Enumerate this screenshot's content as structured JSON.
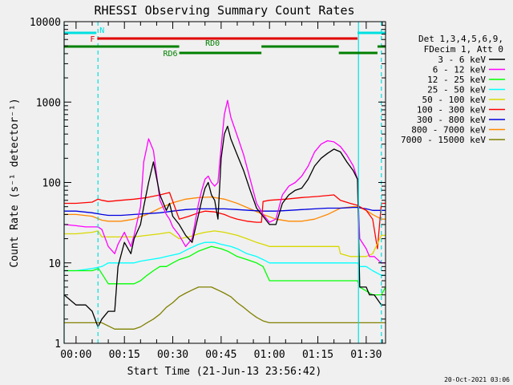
{
  "chart_data": {
    "type": "line",
    "title": "RHESSI Observing Summary Count Rates",
    "xlabel": "Start Time (21-Jun-13 23:56:42)",
    "ylabel": "Count Rate (s⁻¹ detector⁻¹)",
    "yscale": "log",
    "ylim": [
      1,
      10000
    ],
    "xlim_min": [
      -3.7,
      96
    ],
    "x_unit": "minutes after 00:00",
    "x_ticks": [
      "00:00",
      "00:15",
      "00:30",
      "00:45",
      "01:00",
      "01:15",
      "01:30"
    ],
    "y_ticks": [
      "1",
      "10",
      "100",
      "1000",
      "10000"
    ],
    "legend_header": [
      "Det 1,3,4,5,6,9,",
      "FDecim 1, Att 0"
    ],
    "legend_position": "right",
    "footer_date": "20-Oct-2021 03:06",
    "flags": [
      {
        "label": "N",
        "color": "#00e0e0",
        "segments": [
          [
            -3.7,
            6.3
          ],
          [
            87.3,
            96
          ]
        ]
      },
      {
        "label": "F",
        "color": "#e00000",
        "segments": [
          [
            6.6,
            87.3
          ]
        ]
      },
      {
        "label": "RD0",
        "color": "#008000",
        "segments": [
          [
            -3.7,
            32
          ],
          [
            57.5,
            81.5
          ],
          [
            93.5,
            96
          ]
        ]
      },
      {
        "label": "RD6",
        "color": "#008000",
        "segments": [
          [
            32,
            57.5
          ],
          [
            81.5,
            93.5
          ]
        ]
      }
    ],
    "vlines": [
      {
        "x": -3.7,
        "color": "#00e0e0",
        "style": "solid"
      },
      {
        "x": 6.8,
        "color": "#00e0e0",
        "style": "dashed"
      },
      {
        "x": 87.6,
        "color": "#00e0e0",
        "style": "solid"
      },
      {
        "x": 94.7,
        "color": "#00e0e0",
        "style": "dashed"
      }
    ],
    "series": [
      {
        "name": "3 - 6 keV",
        "color": "#000000",
        "x": [
          -3.7,
          0,
          3,
          5,
          6.8,
          8,
          10,
          12,
          13,
          15,
          17,
          18,
          20,
          21,
          22.5,
          24,
          26,
          28,
          29,
          30,
          32,
          34,
          36,
          38,
          39,
          40,
          41,
          42,
          43,
          44,
          45,
          46,
          47,
          48,
          50,
          52,
          54,
          56,
          58,
          60,
          62,
          64,
          66,
          68,
          70,
          72,
          74,
          76,
          78,
          80,
          82,
          84,
          86,
          87.3,
          88,
          90,
          91,
          92.5,
          94.7,
          96
        ],
        "y": [
          4,
          3,
          3,
          2.5,
          1.6,
          2,
          2.5,
          2.5,
          9,
          18,
          13,
          20,
          30,
          50,
          100,
          180,
          70,
          45,
          55,
          38,
          30,
          22,
          18,
          40,
          60,
          85,
          100,
          70,
          60,
          35,
          200,
          400,
          500,
          350,
          220,
          140,
          80,
          48,
          38,
          30,
          30,
          55,
          70,
          80,
          85,
          110,
          160,
          200,
          230,
          260,
          240,
          180,
          140,
          110,
          5,
          5,
          4,
          4,
          3,
          3
        ]
      },
      {
        "name": "6 - 12 keV",
        "color": "#ff00ff",
        "x": [
          -3.7,
          0,
          3,
          5,
          6.8,
          8,
          10,
          12,
          13,
          15,
          17,
          18,
          20,
          21,
          22.5,
          24,
          26,
          28,
          29,
          30,
          32,
          34,
          36,
          38,
          39,
          40,
          41,
          42,
          43,
          44,
          45,
          46,
          47,
          48,
          50,
          52,
          54,
          56,
          58,
          60,
          62,
          64,
          66,
          68,
          70,
          72,
          74,
          76,
          78,
          80,
          82,
          84,
          86,
          87.3,
          88,
          90,
          91,
          92.5,
          94.7,
          96
        ],
        "y": [
          30,
          29,
          28,
          28,
          28,
          26,
          16,
          13,
          17,
          24,
          16,
          22,
          50,
          180,
          350,
          250,
          60,
          40,
          35,
          28,
          22,
          16,
          20,
          55,
          80,
          110,
          120,
          100,
          90,
          100,
          280,
          700,
          1050,
          650,
          380,
          220,
          110,
          55,
          40,
          32,
          35,
          70,
          90,
          100,
          120,
          160,
          240,
          300,
          330,
          320,
          280,
          220,
          160,
          110,
          20,
          15,
          12,
          12,
          10,
          10
        ]
      },
      {
        "name": "12 - 25 keV",
        "color": "#00ff00",
        "x": [
          -3.7,
          0,
          5,
          7,
          10,
          13,
          15,
          18,
          20,
          22,
          24,
          26,
          28,
          30,
          32,
          35,
          38,
          40,
          42,
          45,
          47,
          50,
          53,
          56,
          58,
          60,
          65,
          70,
          75,
          80,
          82,
          85,
          87.3,
          88,
          92,
          94.7,
          96
        ],
        "y": [
          8,
          8,
          8,
          8.5,
          5.5,
          5.5,
          5.5,
          5.5,
          6,
          7,
          8,
          9,
          9,
          10,
          11,
          12,
          14,
          15,
          16,
          15,
          14,
          12,
          11,
          10,
          9,
          6,
          6,
          6,
          6,
          6,
          6,
          6,
          6,
          5,
          4,
          4,
          5
        ]
      },
      {
        "name": "25 - 50 keV",
        "color": "#00ffff",
        "x": [
          -3.7,
          0,
          5,
          8,
          10,
          13,
          16,
          18,
          20,
          23,
          26,
          28,
          30,
          32,
          35,
          38,
          40,
          43,
          45,
          48,
          50,
          53,
          56,
          58,
          60,
          65,
          70,
          75,
          80,
          82,
          85,
          87.3,
          88,
          90,
          92,
          94.7,
          96
        ],
        "y": [
          8,
          8,
          8.5,
          9,
          10,
          10,
          10,
          10,
          10.5,
          11,
          11.5,
          12,
          12.5,
          13,
          15,
          17,
          18,
          18,
          17,
          16,
          15,
          13,
          12,
          11,
          10,
          10,
          10,
          10,
          10,
          10,
          10,
          10,
          9,
          9,
          8,
          7,
          7
        ]
      },
      {
        "name": "50 - 100 keV",
        "color": "#d8d800",
        "x": [
          -3.7,
          0,
          5,
          6.8,
          8,
          10,
          14,
          18,
          22,
          26,
          29,
          32,
          35,
          38,
          40,
          43,
          46,
          48,
          50,
          53,
          56,
          58,
          60,
          65,
          70,
          75,
          80,
          81.5,
          82,
          85,
          87.3,
          88,
          90,
          92,
          94.7,
          96
        ],
        "y": [
          23,
          23,
          24,
          25,
          21,
          21,
          21,
          21,
          22,
          23,
          24,
          20,
          21,
          23,
          24,
          25,
          24,
          23,
          22,
          20,
          18,
          17,
          16,
          16,
          16,
          16,
          16,
          16,
          13,
          12,
          12,
          12,
          12,
          13,
          22,
          22
        ]
      },
      {
        "name": "100 - 300 keV",
        "color": "#ff0000",
        "x": [
          -3.7,
          0,
          5,
          6.8,
          8,
          10,
          14,
          18,
          22,
          26,
          29,
          32,
          35,
          38,
          40,
          43,
          46,
          48,
          50,
          53,
          56,
          57.5,
          58,
          60,
          65,
          70,
          75,
          80,
          82,
          85,
          87.3,
          88,
          90,
          92,
          93.5,
          94.7,
          96
        ],
        "y": [
          55,
          55,
          57,
          62,
          60,
          58,
          60,
          62,
          65,
          70,
          75,
          35,
          38,
          42,
          44,
          43,
          40,
          37,
          35,
          33,
          32,
          32,
          58,
          60,
          62,
          65,
          67,
          70,
          60,
          55,
          52,
          50,
          45,
          35,
          15,
          55,
          55
        ]
      },
      {
        "name": "300 - 800 keV",
        "color": "#0000e0",
        "x": [
          -3.7,
          0,
          5,
          8,
          10,
          14,
          18,
          22,
          26,
          30,
          34,
          38,
          42,
          46,
          50,
          54,
          58,
          62,
          66,
          70,
          74,
          78,
          82,
          86,
          87.3,
          90,
          92,
          94.7,
          96
        ],
        "y": [
          44,
          44,
          42,
          40,
          39,
          39,
          40,
          41,
          42,
          44,
          46,
          47,
          47,
          47,
          46,
          45,
          44,
          44,
          45,
          46,
          47,
          48,
          48,
          49,
          49,
          47,
          45,
          45,
          45
        ]
      },
      {
        "name": "800 - 7000 keV",
        "color": "#ff8800",
        "x": [
          -3.7,
          0,
          5,
          8,
          10,
          14,
          18,
          22,
          26,
          30,
          34,
          38,
          42,
          46,
          50,
          54,
          58,
          62,
          66,
          70,
          74,
          78,
          82,
          86,
          87.3,
          90,
          92,
          94.7,
          96
        ],
        "y": [
          40,
          40,
          38,
          34,
          33,
          33,
          35,
          40,
          48,
          56,
          62,
          65,
          66,
          62,
          55,
          47,
          40,
          35,
          33,
          33,
          35,
          40,
          48,
          50,
          50,
          45,
          40,
          35,
          35
        ]
      },
      {
        "name": "7000 - 15000 keV",
        "color": "#808000",
        "x": [
          -3.7,
          0,
          5,
          8,
          12,
          15,
          18,
          20,
          22,
          24,
          26,
          28,
          30,
          32,
          34,
          36,
          38,
          40,
          42,
          44,
          46,
          48,
          50,
          52,
          54,
          56,
          58,
          60,
          64,
          68,
          72,
          76,
          80,
          84,
          87.3,
          90,
          92,
          94.7,
          96
        ],
        "y": [
          1.8,
          1.8,
          1.8,
          1.8,
          1.5,
          1.5,
          1.5,
          1.6,
          1.8,
          2,
          2.3,
          2.8,
          3.2,
          3.8,
          4.2,
          4.6,
          5,
          5,
          5,
          4.6,
          4.2,
          3.8,
          3.2,
          2.8,
          2.4,
          2.1,
          1.9,
          1.8,
          1.8,
          1.8,
          1.8,
          1.8,
          1.8,
          1.8,
          1.8,
          1.8,
          1.8,
          1.8,
          1.8
        ]
      }
    ]
  }
}
